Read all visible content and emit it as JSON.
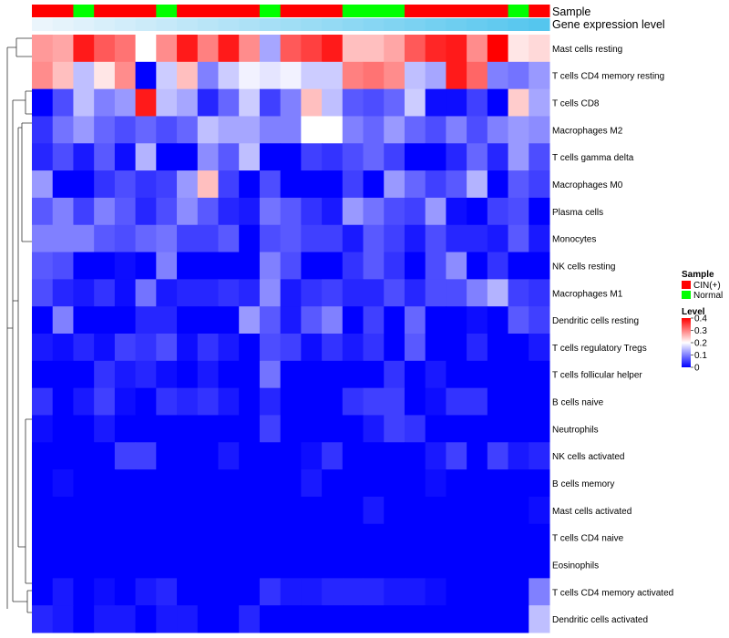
{
  "chart_data": {
    "type": "heatmap",
    "title": "",
    "annotation_tracks": [
      "Sample",
      "Gene expression level"
    ],
    "sample_groups": [
      "CIN(+)",
      "CIN(+)",
      "Normal",
      "CIN(+)",
      "CIN(+)",
      "CIN(+)",
      "Normal",
      "CIN(+)",
      "CIN(+)",
      "CIN(+)",
      "CIN(+)",
      "Normal",
      "CIN(+)",
      "CIN(+)",
      "CIN(+)",
      "Normal",
      "Normal",
      "Normal",
      "CIN(+)",
      "CIN(+)",
      "CIN(+)",
      "CIN(+)",
      "CIN(+)",
      "Normal",
      "CIN(+)"
    ],
    "rows": [
      "Mast cells resting",
      "T cells CD4 memory resting",
      "T cells CD8",
      "Macrophages M2",
      "T cells gamma delta",
      "Macrophages M0",
      "Plasma cells",
      "Monocytes",
      "NK cells resting",
      "Macrophages M1",
      "Dendritic cells resting",
      "T cells regulatory  Tregs",
      "T cells follicular helper",
      "B cells naive",
      "Neutrophils",
      "NK cells activated",
      "B cells memory",
      "Mast cells activated",
      "T cells CD4 naive",
      "Eosinophils",
      "T cells CD4 memory activated",
      "Dendritic cells activated"
    ],
    "values": [
      [
        0.28,
        0.27,
        0.38,
        0.33,
        0.31,
        0.2,
        0.29,
        0.38,
        0.3,
        0.38,
        0.29,
        0.13,
        0.33,
        0.35,
        0.38,
        0.25,
        0.25,
        0.27,
        0.33,
        0.37,
        0.38,
        0.29,
        0.4,
        0.22,
        0.23
      ],
      [
        0.29,
        0.25,
        0.15,
        0.22,
        0.29,
        0.0,
        0.16,
        0.25,
        0.1,
        0.16,
        0.19,
        0.18,
        0.19,
        0.16,
        0.16,
        0.3,
        0.31,
        0.29,
        0.15,
        0.13,
        0.38,
        0.32,
        0.1,
        0.09,
        0.12
      ],
      [
        0.0,
        0.06,
        0.15,
        0.1,
        0.12,
        0.38,
        0.15,
        0.13,
        0.03,
        0.08,
        0.16,
        0.05,
        0.1,
        0.25,
        0.15,
        0.07,
        0.06,
        0.08,
        0.16,
        0.01,
        0.01,
        0.05,
        0.0,
        0.24,
        0.13
      ],
      [
        0.04,
        0.09,
        0.12,
        0.08,
        0.06,
        0.08,
        0.06,
        0.08,
        0.15,
        0.13,
        0.13,
        0.1,
        0.1,
        0.2,
        0.2,
        0.1,
        0.08,
        0.12,
        0.08,
        0.06,
        0.1,
        0.06,
        0.1,
        0.12,
        0.11
      ],
      [
        0.03,
        0.06,
        0.02,
        0.07,
        0.01,
        0.14,
        0.0,
        0.0,
        0.11,
        0.07,
        0.15,
        0.0,
        0.0,
        0.05,
        0.04,
        0.06,
        0.08,
        0.05,
        0.0,
        0.0,
        0.03,
        0.08,
        0.03,
        0.12,
        0.06
      ],
      [
        0.12,
        0.0,
        0.0,
        0.04,
        0.06,
        0.04,
        0.05,
        0.12,
        0.25,
        0.05,
        0.0,
        0.06,
        0.0,
        0.0,
        0.0,
        0.05,
        0.0,
        0.12,
        0.08,
        0.05,
        0.07,
        0.14,
        0.0,
        0.07,
        0.05
      ],
      [
        0.07,
        0.1,
        0.05,
        0.1,
        0.07,
        0.03,
        0.06,
        0.11,
        0.07,
        0.03,
        0.02,
        0.09,
        0.07,
        0.04,
        0.02,
        0.12,
        0.09,
        0.06,
        0.05,
        0.12,
        0.01,
        0.0,
        0.05,
        0.06,
        0.0
      ],
      [
        0.1,
        0.1,
        0.1,
        0.07,
        0.06,
        0.08,
        0.09,
        0.05,
        0.05,
        0.07,
        0.0,
        0.06,
        0.07,
        0.05,
        0.05,
        0.02,
        0.07,
        0.05,
        0.02,
        0.06,
        0.03,
        0.03,
        0.02,
        0.07,
        0.02
      ],
      [
        0.07,
        0.06,
        0.0,
        0.0,
        0.01,
        0.0,
        0.1,
        0.0,
        0.0,
        0.0,
        0.0,
        0.1,
        0.06,
        0.0,
        0.0,
        0.04,
        0.07,
        0.04,
        0.0,
        0.06,
        0.11,
        0.0,
        0.04,
        0.0,
        0.0
      ],
      [
        0.06,
        0.03,
        0.02,
        0.04,
        0.01,
        0.09,
        0.02,
        0.03,
        0.03,
        0.04,
        0.03,
        0.11,
        0.02,
        0.04,
        0.05,
        0.03,
        0.03,
        0.06,
        0.03,
        0.06,
        0.06,
        0.1,
        0.14,
        0.05,
        0.04
      ],
      [
        0.0,
        0.1,
        0.0,
        0.0,
        0.0,
        0.03,
        0.03,
        0.0,
        0.0,
        0.0,
        0.12,
        0.07,
        0.02,
        0.07,
        0.1,
        0.0,
        0.05,
        0.0,
        0.08,
        0.0,
        0.0,
        0.01,
        0.0,
        0.07,
        0.05
      ],
      [
        0.02,
        0.01,
        0.03,
        0.01,
        0.05,
        0.04,
        0.06,
        0.01,
        0.04,
        0.02,
        0.0,
        0.06,
        0.05,
        0.01,
        0.04,
        0.02,
        0.04,
        0.0,
        0.07,
        0.0,
        0.0,
        0.03,
        0.0,
        0.0,
        0.02
      ],
      [
        0.0,
        0.0,
        0.0,
        0.04,
        0.02,
        0.03,
        0.01,
        0.0,
        0.02,
        0.0,
        0.0,
        0.09,
        0.0,
        0.0,
        0.0,
        0.0,
        0.0,
        0.04,
        0.0,
        0.02,
        0.0,
        0.0,
        0.0,
        0.0,
        0.0
      ],
      [
        0.04,
        0.0,
        0.02,
        0.05,
        0.01,
        0.0,
        0.04,
        0.03,
        0.04,
        0.02,
        0.0,
        0.03,
        0.0,
        0.0,
        0.0,
        0.04,
        0.05,
        0.05,
        0.0,
        0.01,
        0.04,
        0.04,
        0.0,
        0.0,
        0.0
      ],
      [
        0.01,
        0.0,
        0.0,
        0.02,
        0.0,
        0.0,
        0.0,
        0.0,
        0.0,
        0.0,
        0.0,
        0.05,
        0.0,
        0.0,
        0.0,
        0.0,
        0.02,
        0.05,
        0.04,
        0.0,
        0.0,
        0.0,
        0.0,
        0.0,
        0.0
      ],
      [
        0.0,
        0.0,
        0.0,
        0.0,
        0.05,
        0.05,
        0.0,
        0.0,
        0.0,
        0.02,
        0.0,
        0.0,
        0.0,
        0.01,
        0.04,
        0.0,
        0.0,
        0.0,
        0.0,
        0.02,
        0.05,
        0.0,
        0.05,
        0.02,
        0.03
      ],
      [
        0.0,
        0.01,
        0.0,
        0.0,
        0.0,
        0.0,
        0.0,
        0.0,
        0.0,
        0.0,
        0.0,
        0.0,
        0.0,
        0.02,
        0.0,
        0.0,
        0.0,
        0.0,
        0.0,
        0.01,
        0.0,
        0.0,
        0.0,
        0.0,
        0.0
      ],
      [
        0.0,
        0.0,
        0.0,
        0.0,
        0.0,
        0.0,
        0.0,
        0.0,
        0.0,
        0.0,
        0.0,
        0.0,
        0.0,
        0.0,
        0.0,
        0.0,
        0.02,
        0.0,
        0.0,
        0.0,
        0.0,
        0.0,
        0.0,
        0.0,
        0.01
      ],
      [
        0.0,
        0.0,
        0.0,
        0.0,
        0.0,
        0.0,
        0.0,
        0.0,
        0.0,
        0.0,
        0.0,
        0.0,
        0.0,
        0.0,
        0.0,
        0.0,
        0.0,
        0.0,
        0.0,
        0.0,
        0.0,
        0.0,
        0.0,
        0.0,
        0.0
      ],
      [
        0.0,
        0.0,
        0.0,
        0.0,
        0.0,
        0.0,
        0.0,
        0.0,
        0.0,
        0.0,
        0.0,
        0.0,
        0.0,
        0.0,
        0.0,
        0.0,
        0.0,
        0.0,
        0.0,
        0.0,
        0.0,
        0.0,
        0.0,
        0.0,
        0.0
      ],
      [
        0.0,
        0.02,
        0.0,
        0.01,
        0.0,
        0.02,
        0.03,
        0.0,
        0.0,
        0.0,
        0.0,
        0.04,
        0.02,
        0.02,
        0.03,
        0.03,
        0.03,
        0.02,
        0.02,
        0.01,
        0.0,
        0.0,
        0.0,
        0.0,
        0.1
      ],
      [
        0.03,
        0.02,
        0.0,
        0.02,
        0.02,
        0.0,
        0.02,
        0.02,
        0.0,
        0.0,
        0.03,
        0.0,
        0.0,
        0.0,
        0.0,
        0.0,
        0.0,
        0.0,
        0.0,
        0.0,
        0.0,
        0.0,
        0.0,
        0.0,
        0.15
      ]
    ],
    "colorbar": {
      "title": "Level",
      "min": 0,
      "max": 0.4,
      "ticks": [
        0.4,
        0.3,
        0.2,
        0.1,
        0
      ],
      "low": "#0000ff",
      "mid": "#ffffff",
      "high": "#ff0000",
      "mid_value": 0.2
    },
    "legend": {
      "sample_title": "Sample",
      "sample_entries": [
        {
          "label": "CIN(+)",
          "color": "#ff0000"
        },
        {
          "label": "Normal",
          "color": "#00ff00"
        }
      ],
      "placement": "right"
    },
    "expression_track_colors": [
      "#ebf5fc",
      "#55c6ee"
    ]
  }
}
